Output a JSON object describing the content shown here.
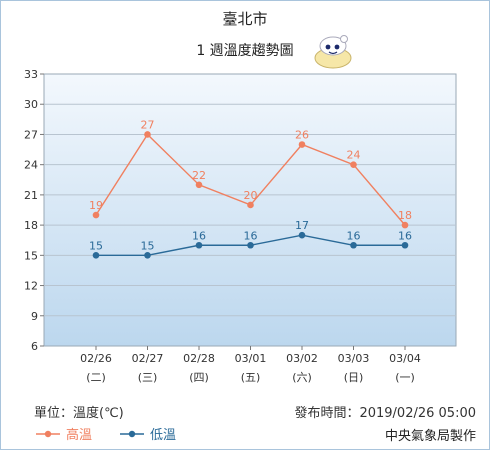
{
  "header": {
    "title": "臺北市",
    "subtitle": "1 週溫度趨勢圖"
  },
  "footer": {
    "unit": "單位：溫度(℃)",
    "published": "發布時間：2019/02/26 05:00",
    "agency": "中央氣象局製作"
  },
  "colors": {
    "high": "#f08060",
    "low": "#2a6a98",
    "plot_bg_top": "#f3f8fd",
    "plot_bg_bottom": "#bcd7ee",
    "grid": "#b8c4d0"
  },
  "chart_data": {
    "type": "line",
    "categories": [
      "02/26",
      "02/27",
      "02/28",
      "03/01",
      "03/02",
      "03/03",
      "03/04"
    ],
    "weekdays": [
      "(二)",
      "(三)",
      "(四)",
      "(五)",
      "(六)",
      "(日)",
      "(一)"
    ],
    "series": [
      {
        "name": "高溫",
        "values": [
          19,
          27,
          22,
          20,
          26,
          24,
          18
        ]
      },
      {
        "name": "低溫",
        "values": [
          15,
          15,
          16,
          16,
          17,
          16,
          16
        ]
      }
    ],
    "ylim": [
      6,
      33
    ],
    "yticks": [
      6,
      9,
      12,
      15,
      18,
      21,
      24,
      27,
      30,
      33
    ],
    "grid": true,
    "legend": "bottom-left",
    "xlabel": "",
    "ylabel": ""
  }
}
